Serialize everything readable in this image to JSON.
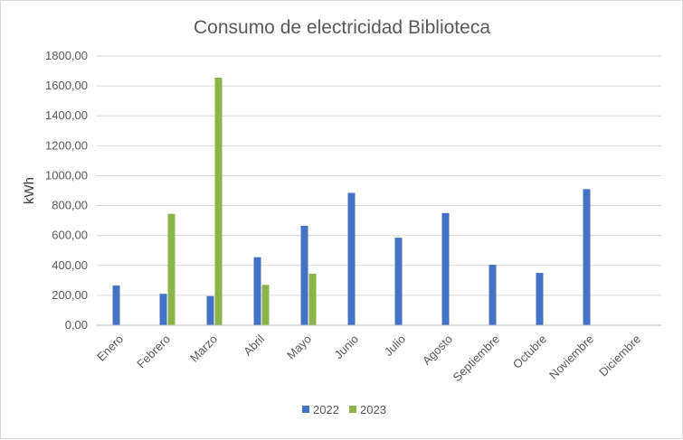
{
  "chart_data": {
    "type": "bar",
    "title": "Consumo de electricidad Biblioteca",
    "xlabel": "",
    "ylabel": "kWh",
    "ylim": [
      0,
      1800
    ],
    "yticks": [
      "0,00",
      "200,00",
      "400,00",
      "600,00",
      "800,00",
      "1000,00",
      "1200,00",
      "1400,00",
      "1600,00",
      "1800,00"
    ],
    "categories": [
      "Enero",
      "Febrero",
      "Marzo",
      "Abril",
      "Mayo",
      "Junio",
      "Julio",
      "Agosto",
      "Septiembre",
      "Octubre",
      "Noviembre",
      "Diciembre"
    ],
    "series": [
      {
        "name": "2022",
        "color": "#4472c4",
        "values": [
          265,
          210,
          195,
          455,
          665,
          885,
          585,
          750,
          405,
          350,
          910,
          null
        ]
      },
      {
        "name": "2023",
        "color": "#8cb44a",
        "values": [
          null,
          745,
          1655,
          270,
          345,
          null,
          null,
          null,
          null,
          null,
          null,
          null
        ]
      }
    ],
    "grid": true,
    "legend": "bottom"
  }
}
